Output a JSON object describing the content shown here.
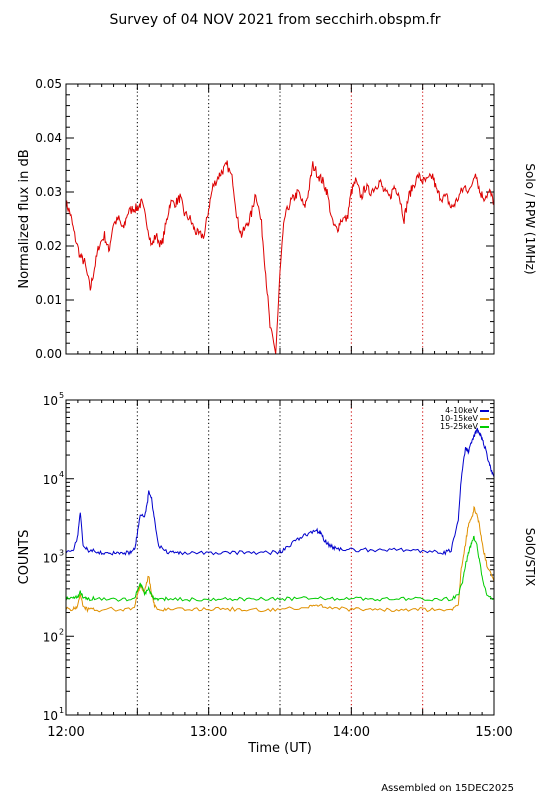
{
  "title": "Survey of 04 NOV 2021 from secchirh.obspm.fr",
  "footer": "Assembled on 15DEC2025",
  "x_axis": {
    "label": "Time (UT)",
    "range_hours": [
      12,
      15
    ],
    "ticks": [
      {
        "value": 12,
        "label": "12:00"
      },
      {
        "value": 13,
        "label": "13:00"
      },
      {
        "value": 14,
        "label": "14:00"
      },
      {
        "value": 15,
        "label": "15:00"
      }
    ],
    "vlines": [
      {
        "value": 12.5,
        "color": "#000000"
      },
      {
        "value": 13.0,
        "color": "#000000"
      },
      {
        "value": 13.5,
        "color": "#000000"
      },
      {
        "value": 14.0,
        "color": "#cc0000"
      },
      {
        "value": 14.5,
        "color": "#cc0000"
      }
    ]
  },
  "chart_data": [
    {
      "type": "line",
      "ylabel": "Normalized flux in dB",
      "right_label": "Solo / RPW (1MHz)",
      "ylim": [
        0,
        0.05
      ],
      "yticks": [
        "0.00",
        "0.01",
        "0.02",
        "0.03",
        "0.04",
        "0.05"
      ],
      "series": [
        {
          "color": "#dd0000",
          "x": [
            12.0,
            12.03,
            12.06,
            12.1,
            12.13,
            12.17,
            12.2,
            12.23,
            12.27,
            12.3,
            12.33,
            12.37,
            12.4,
            12.43,
            12.47,
            12.5,
            12.53,
            12.57,
            12.6,
            12.63,
            12.67,
            12.7,
            12.73,
            12.77,
            12.8,
            12.83,
            12.87,
            12.9,
            12.93,
            12.97,
            13.0,
            13.03,
            13.07,
            13.1,
            13.13,
            13.17,
            13.2,
            13.23,
            13.27,
            13.3,
            13.33,
            13.37,
            13.4,
            13.43,
            13.47,
            13.5,
            13.53,
            13.57,
            13.6,
            13.63,
            13.67,
            13.7,
            13.73,
            13.77,
            13.8,
            13.83,
            13.87,
            13.9,
            13.93,
            13.97,
            14.0,
            14.03,
            14.07,
            14.1,
            14.13,
            14.17,
            14.2,
            14.23,
            14.27,
            14.3,
            14.33,
            14.37,
            14.4,
            14.43,
            14.47,
            14.5,
            14.53,
            14.57,
            14.6,
            14.63,
            14.67,
            14.7,
            14.73,
            14.77,
            14.8,
            14.83,
            14.87,
            14.9,
            14.93,
            14.97,
            15.0
          ],
          "y": [
            0.028,
            0.026,
            0.022,
            0.018,
            0.017,
            0.012,
            0.016,
            0.02,
            0.022,
            0.019,
            0.024,
            0.025,
            0.023,
            0.026,
            0.027,
            0.027,
            0.028,
            0.024,
            0.02,
            0.022,
            0.02,
            0.024,
            0.028,
            0.028,
            0.029,
            0.026,
            0.025,
            0.023,
            0.022,
            0.022,
            0.027,
            0.031,
            0.033,
            0.034,
            0.035,
            0.032,
            0.025,
            0.022,
            0.024,
            0.026,
            0.03,
            0.024,
            0.015,
            0.005,
            0.0,
            0.015,
            0.025,
            0.028,
            0.029,
            0.03,
            0.027,
            0.03,
            0.035,
            0.033,
            0.032,
            0.03,
            0.024,
            0.023,
            0.025,
            0.025,
            0.03,
            0.032,
            0.029,
            0.031,
            0.03,
            0.031,
            0.032,
            0.03,
            0.029,
            0.031,
            0.03,
            0.025,
            0.029,
            0.031,
            0.033,
            0.032,
            0.032,
            0.033,
            0.03,
            0.029,
            0.029,
            0.027,
            0.028,
            0.03,
            0.031,
            0.03,
            0.034,
            0.03,
            0.029,
            0.03,
            0.028
          ]
        }
      ]
    },
    {
      "type": "line",
      "ylabel": "COUNTS",
      "right_label": "SolO/STIX",
      "yscale": "log",
      "ylim": [
        10,
        100000
      ],
      "yticks": [
        {
          "value": 10,
          "base": "10",
          "exp": "1"
        },
        {
          "value": 100,
          "base": "10",
          "exp": "2"
        },
        {
          "value": 1000,
          "base": "10",
          "exp": "3"
        },
        {
          "value": 10000,
          "base": "10",
          "exp": "4"
        },
        {
          "value": 100000,
          "base": "10",
          "exp": "5"
        }
      ],
      "legend_position": "top-right",
      "series": [
        {
          "name": "4-10keV",
          "color": "#0000cc",
          "x": [
            12.0,
            12.05,
            12.08,
            12.1,
            12.12,
            12.15,
            12.2,
            12.25,
            12.3,
            12.35,
            12.4,
            12.45,
            12.48,
            12.5,
            12.52,
            12.55,
            12.57,
            12.58,
            12.6,
            12.62,
            12.65,
            12.7,
            12.75,
            12.8,
            12.9,
            13.0,
            13.1,
            13.2,
            13.3,
            13.4,
            13.5,
            13.55,
            13.6,
            13.65,
            13.7,
            13.75,
            13.78,
            13.8,
            13.83,
            13.87,
            13.9,
            13.95,
            14.0,
            14.1,
            14.2,
            14.3,
            14.4,
            14.5,
            14.6,
            14.65,
            14.7,
            14.75,
            14.77,
            14.8,
            14.82,
            14.84,
            14.86,
            14.88,
            14.9,
            14.92,
            14.94,
            14.96,
            14.98,
            15.0
          ],
          "y": [
            1200,
            1250,
            1800,
            3800,
            1400,
            1250,
            1200,
            1150,
            1150,
            1120,
            1150,
            1150,
            1250,
            2000,
            3500,
            3300,
            5000,
            7000,
            5500,
            3000,
            1400,
            1200,
            1150,
            1150,
            1150,
            1150,
            1150,
            1150,
            1150,
            1150,
            1180,
            1350,
            1600,
            1800,
            2000,
            2200,
            2100,
            1800,
            1500,
            1350,
            1300,
            1280,
            1250,
            1250,
            1250,
            1250,
            1250,
            1200,
            1200,
            1150,
            1250,
            3000,
            10000,
            25000,
            22000,
            28000,
            35000,
            42000,
            38000,
            30000,
            24000,
            17000,
            13000,
            10500
          ]
        },
        {
          "name": "10-15keV",
          "color": "#e09000",
          "x": [
            12.0,
            12.05,
            12.08,
            12.1,
            12.12,
            12.15,
            12.2,
            12.3,
            12.4,
            12.48,
            12.5,
            12.52,
            12.55,
            12.58,
            12.6,
            12.62,
            12.65,
            12.7,
            12.8,
            12.9,
            13.0,
            13.1,
            13.2,
            13.3,
            13.4,
            13.5,
            13.6,
            13.7,
            13.75,
            13.8,
            13.9,
            14.0,
            14.1,
            14.2,
            14.3,
            14.4,
            14.5,
            14.6,
            14.7,
            14.75,
            14.77,
            14.8,
            14.82,
            14.84,
            14.86,
            14.88,
            14.9,
            14.92,
            14.95,
            15.0
          ],
          "y": [
            230,
            220,
            240,
            340,
            240,
            220,
            215,
            220,
            220,
            230,
            330,
            450,
            360,
            600,
            330,
            250,
            220,
            220,
            220,
            220,
            220,
            220,
            220,
            215,
            215,
            220,
            225,
            240,
            250,
            240,
            225,
            220,
            220,
            215,
            215,
            220,
            220,
            215,
            220,
            260,
            700,
            1500,
            2500,
            3000,
            4200,
            3500,
            2500,
            1400,
            800,
            500
          ]
        },
        {
          "name": "15-25keV",
          "color": "#00cc00",
          "x": [
            12.0,
            12.05,
            12.08,
            12.1,
            12.12,
            12.15,
            12.2,
            12.3,
            12.4,
            12.48,
            12.5,
            12.52,
            12.55,
            12.58,
            12.6,
            12.62,
            12.65,
            12.7,
            12.8,
            12.9,
            13.0,
            13.1,
            13.2,
            13.3,
            13.4,
            13.5,
            13.6,
            13.7,
            13.8,
            13.9,
            14.0,
            14.1,
            14.2,
            14.3,
            14.4,
            14.5,
            14.6,
            14.7,
            14.75,
            14.78,
            14.8,
            14.82,
            14.84,
            14.86,
            14.88,
            14.9,
            14.92,
            14.95,
            15.0
          ],
          "y": [
            300,
            300,
            320,
            370,
            310,
            300,
            300,
            295,
            295,
            300,
            380,
            470,
            350,
            400,
            330,
            300,
            300,
            300,
            295,
            295,
            295,
            295,
            295,
            295,
            295,
            300,
            300,
            310,
            300,
            300,
            300,
            295,
            295,
            295,
            295,
            295,
            295,
            295,
            330,
            500,
            800,
            1100,
            1500,
            1800,
            1400,
            900,
            500,
            350,
            300
          ]
        }
      ]
    }
  ]
}
